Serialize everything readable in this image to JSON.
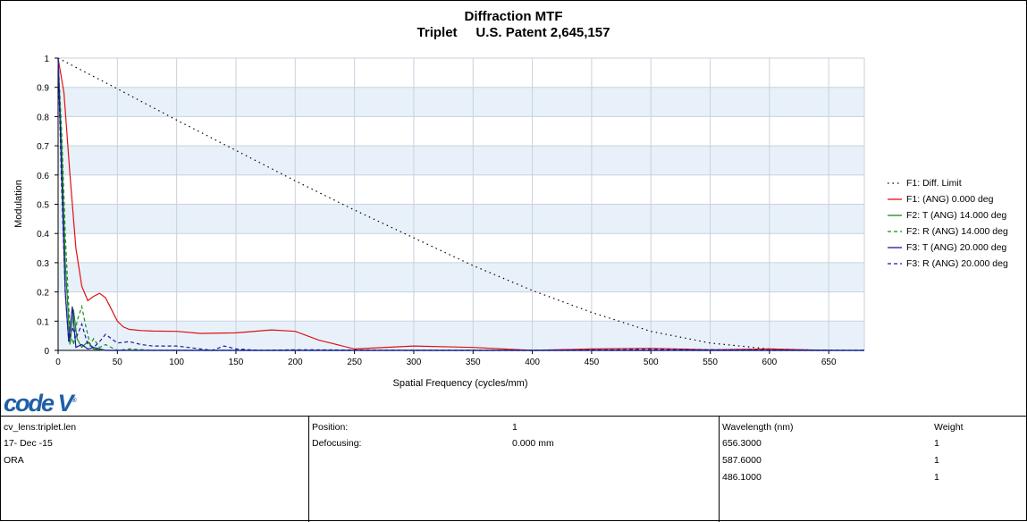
{
  "chart_data": {
    "type": "line",
    "title": "Diffraction MTF",
    "subtitle": "Triplet     U.S. Patent 2,645,157",
    "xlabel": "Spatial Frequency (cycles/mm)",
    "ylabel": "Modulation",
    "xlim": [
      0,
      680
    ],
    "ylim": [
      0,
      1
    ],
    "x_ticks": [
      "0",
      "50",
      "100",
      "150",
      "200",
      "250",
      "300",
      "350",
      "400",
      "450",
      "500",
      "550",
      "600",
      "650"
    ],
    "y_ticks": [
      "0",
      "0.1",
      "0.2",
      "0.3",
      "0.4",
      "0.5",
      "0.6",
      "0.7",
      "0.8",
      "0.9",
      "1"
    ],
    "grid": true,
    "legend_position": "right",
    "series": [
      {
        "name": "F1: Diff. Limit",
        "color": "#000000",
        "dash": "dotted",
        "x": [
          0,
          50,
          100,
          150,
          200,
          250,
          300,
          350,
          400,
          450,
          500,
          550,
          600,
          650
        ],
        "y": [
          1,
          0.895,
          0.788,
          0.684,
          0.58,
          0.48,
          0.385,
          0.29,
          0.205,
          0.13,
          0.065,
          0.025,
          0.005,
          0
        ]
      },
      {
        "name": "F1: (ANG) 0.000 deg",
        "color": "#e01010",
        "dash": "solid",
        "x": [
          0,
          5,
          10,
          15,
          20,
          25,
          30,
          35,
          40,
          45,
          50,
          55,
          60,
          70,
          80,
          100,
          120,
          150,
          180,
          200,
          220,
          250,
          300,
          350,
          400,
          450,
          500,
          550,
          600,
          650
        ],
        "y": [
          1,
          0.88,
          0.6,
          0.35,
          0.22,
          0.17,
          0.185,
          0.195,
          0.18,
          0.14,
          0.1,
          0.08,
          0.072,
          0.068,
          0.066,
          0.065,
          0.058,
          0.06,
          0.07,
          0.065,
          0.035,
          0.005,
          0.015,
          0.01,
          0.0,
          0.005,
          0.007,
          0.002,
          0.005,
          0
        ]
      },
      {
        "name": "F2: T (ANG) 14.000 deg",
        "color": "#1a8a1a",
        "dash": "solid",
        "x": [
          0,
          3,
          6,
          10,
          13,
          16,
          20,
          25,
          30,
          35,
          40,
          60,
          100,
          200,
          680
        ],
        "y": [
          1,
          0.7,
          0.3,
          0.02,
          0.14,
          0.04,
          0.01,
          0.03,
          0.005,
          0.002,
          0,
          0,
          0,
          0,
          0
        ]
      },
      {
        "name": "F2: R (ANG) 14.000 deg",
        "color": "#1a8a1a",
        "dash": "dashed",
        "x": [
          0,
          3,
          6,
          10,
          13,
          16,
          20,
          23,
          27,
          30,
          35,
          40,
          50,
          60,
          80,
          100,
          150,
          200,
          680
        ],
        "y": [
          1,
          0.75,
          0.4,
          0.06,
          0.02,
          0.1,
          0.15,
          0.09,
          0.02,
          0.04,
          0.01,
          0.02,
          0.0,
          0.005,
          0,
          0,
          0,
          0,
          0
        ]
      },
      {
        "name": "F3: T (ANG) 20.000 deg",
        "color": "#1a1aa0",
        "dash": "solid",
        "x": [
          0,
          3,
          6,
          9,
          12,
          15,
          20,
          25,
          30,
          40,
          60,
          100,
          200,
          680
        ],
        "y": [
          1,
          0.6,
          0.2,
          0.03,
          0.15,
          0.01,
          0.02,
          0.005,
          0.01,
          0,
          0,
          0,
          0,
          0
        ]
      },
      {
        "name": "F3: R (ANG) 20.000 deg",
        "color": "#1a1aa0",
        "dash": "dashed",
        "x": [
          0,
          3,
          6,
          9,
          12,
          15,
          20,
          25,
          30,
          35,
          40,
          45,
          50,
          60,
          70,
          80,
          100,
          120,
          130,
          140,
          150,
          170,
          200,
          300,
          400,
          500,
          680
        ],
        "y": [
          1,
          0.55,
          0.2,
          0.03,
          0.08,
          0.04,
          0.09,
          0.02,
          0.01,
          0.03,
          0.055,
          0.04,
          0.025,
          0.03,
          0.02,
          0.015,
          0.015,
          0.005,
          0.0,
          0.015,
          0.005,
          0.0,
          0.002,
          0,
          0,
          0.003,
          0
        ]
      }
    ]
  },
  "logo": {
    "text": "code V",
    "mark": "®"
  },
  "info": {
    "col1": [
      "cv_lens:triplet.len",
      "17- Dec -15",
      "ORA"
    ],
    "position_label": "Position:",
    "position_value": "1",
    "defocus_label": "Defocusing:",
    "defocus_value": "0.000 mm",
    "wave_header": "Wavelength (nm)",
    "weight_header": "Weight",
    "wavelengths": [
      "656.3000",
      "587.6000",
      "486.1000"
    ],
    "weights": [
      "1",
      "1",
      "1"
    ]
  }
}
